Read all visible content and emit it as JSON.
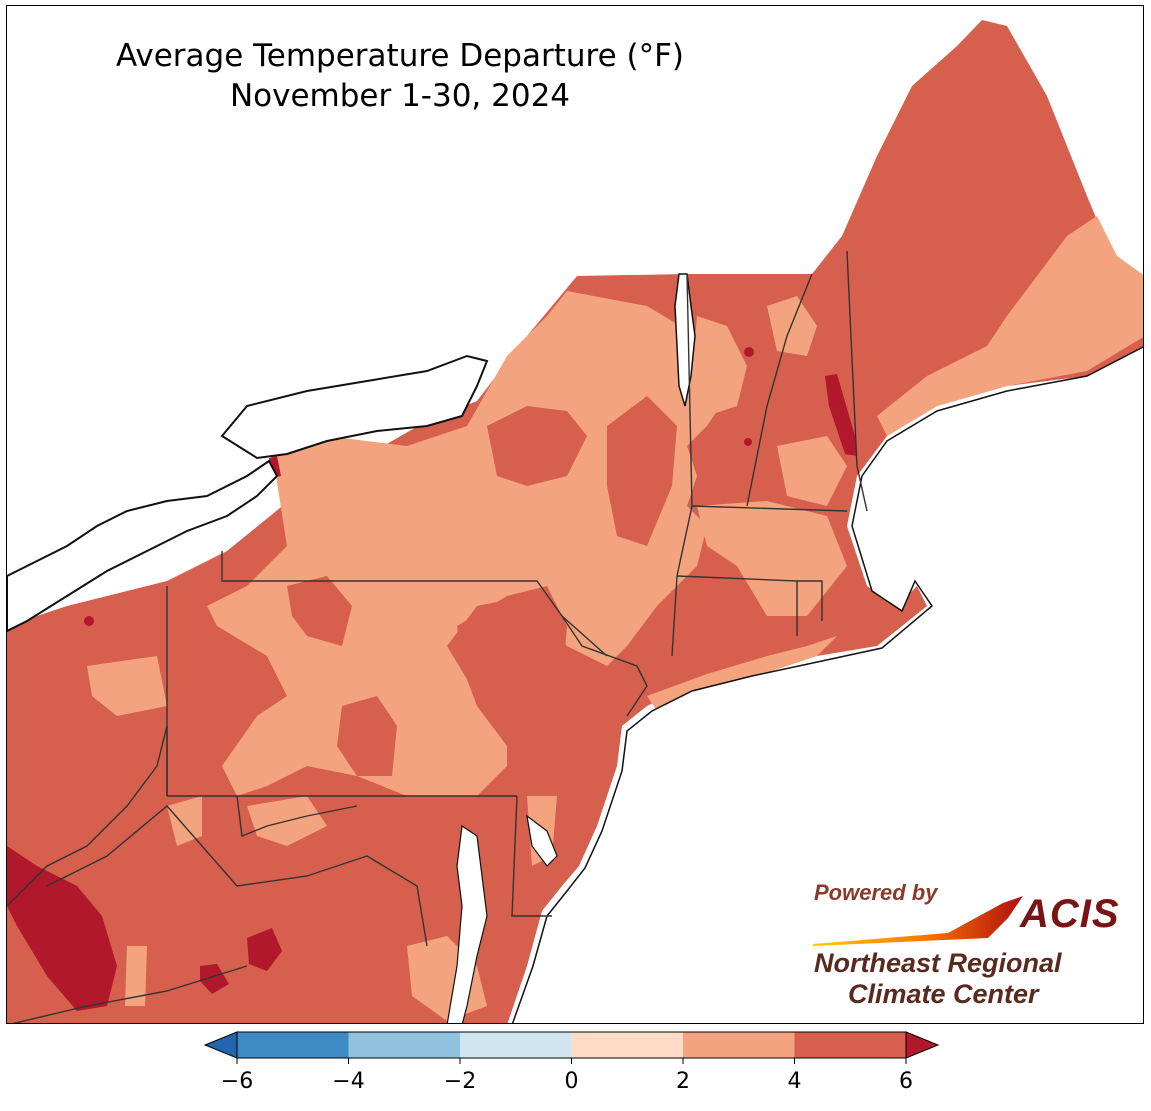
{
  "title": {
    "line1": "Average Temperature Departure (°F)",
    "line2": "November 1-30, 2024"
  },
  "credit": {
    "powered_by": "Powered by",
    "acis": "ACIS",
    "org_line1": "Northeast Regional",
    "org_line2": "Climate Center"
  },
  "legend": {
    "ticks": [
      "−6",
      "−4",
      "−2",
      "0",
      "2",
      "4",
      "6"
    ],
    "bins": [
      {
        "range": "-6 to -4",
        "color": "#3d8ac4"
      },
      {
        "range": "-4 to -2",
        "color": "#92c3de"
      },
      {
        "range": "-2 to 0",
        "color": "#d1e5f0"
      },
      {
        "range": "0 to 2",
        "color": "#fddbc7"
      },
      {
        "range": "2 to 4",
        "color": "#f3a47f"
      },
      {
        "range": "4 to 6",
        "color": "#d6604d"
      }
    ],
    "below_color": "#2166ac",
    "above_color": "#b2182b"
  },
  "map_colors": {
    "water": "#ffffff",
    "band_4_6": "#d6604d",
    "band_2_4": "#f3a47f",
    "band_6_plus": "#b2182b",
    "boundary": "#222222"
  }
}
